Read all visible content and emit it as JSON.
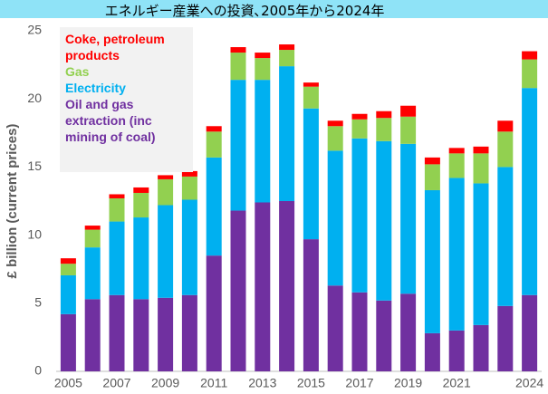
{
  "chart_data": {
    "type": "stacked_bar",
    "title": "エネルギー産業への投資､2005年から2024年",
    "y_label": "£ billion (current  prices)",
    "categories": [
      "2005",
      null,
      "2007",
      null,
      "2009",
      null,
      "2011",
      null,
      "2013",
      null,
      "2015",
      null,
      "2017",
      null,
      "2019",
      null,
      "2021",
      null,
      null,
      "2024"
    ],
    "series": [
      {
        "name": "Coke, petroleum products",
        "color": "#ff0000",
        "values": [
          0.4,
          0.3,
          0.3,
          0.4,
          0.3,
          0.4,
          0.4,
          0.4,
          0.4,
          0.4,
          0.3,
          0.4,
          0.4,
          0.5,
          0.8,
          0.5,
          0.4,
          0.5,
          0.8,
          0.6
        ]
      },
      {
        "name": "Gas",
        "color": "#92d050",
        "values": [
          0.85,
          1.3,
          1.7,
          1.8,
          1.9,
          1.7,
          1.9,
          2.0,
          1.6,
          1.2,
          1.6,
          1.8,
          1.4,
          1.7,
          2.0,
          1.9,
          1.8,
          2.2,
          2.6,
          2.1
        ]
      },
      {
        "name": "Electricity",
        "color": "#00b0f0",
        "values": [
          2.85,
          3.8,
          5.4,
          6.0,
          6.8,
          7.0,
          7.2,
          9.6,
          9.0,
          9.9,
          9.6,
          9.9,
          11.3,
          11.7,
          11.0,
          10.5,
          11.2,
          10.4,
          10.2,
          15.2
        ]
      },
      {
        "name": "Oil and gas extraction (inc mining of coal)",
        "color": "#7030a0",
        "values": [
          4.2,
          5.3,
          5.6,
          5.3,
          5.4,
          5.6,
          8.5,
          11.8,
          12.4,
          12.5,
          9.7,
          6.3,
          5.8,
          5.2,
          5.7,
          2.8,
          3.0,
          3.4,
          4.8,
          5.6
        ]
      }
    ],
    "ylim": [
      0,
      25
    ],
    "yticks": [
      0,
      5,
      10,
      15,
      20,
      25
    ],
    "grid": false
  }
}
